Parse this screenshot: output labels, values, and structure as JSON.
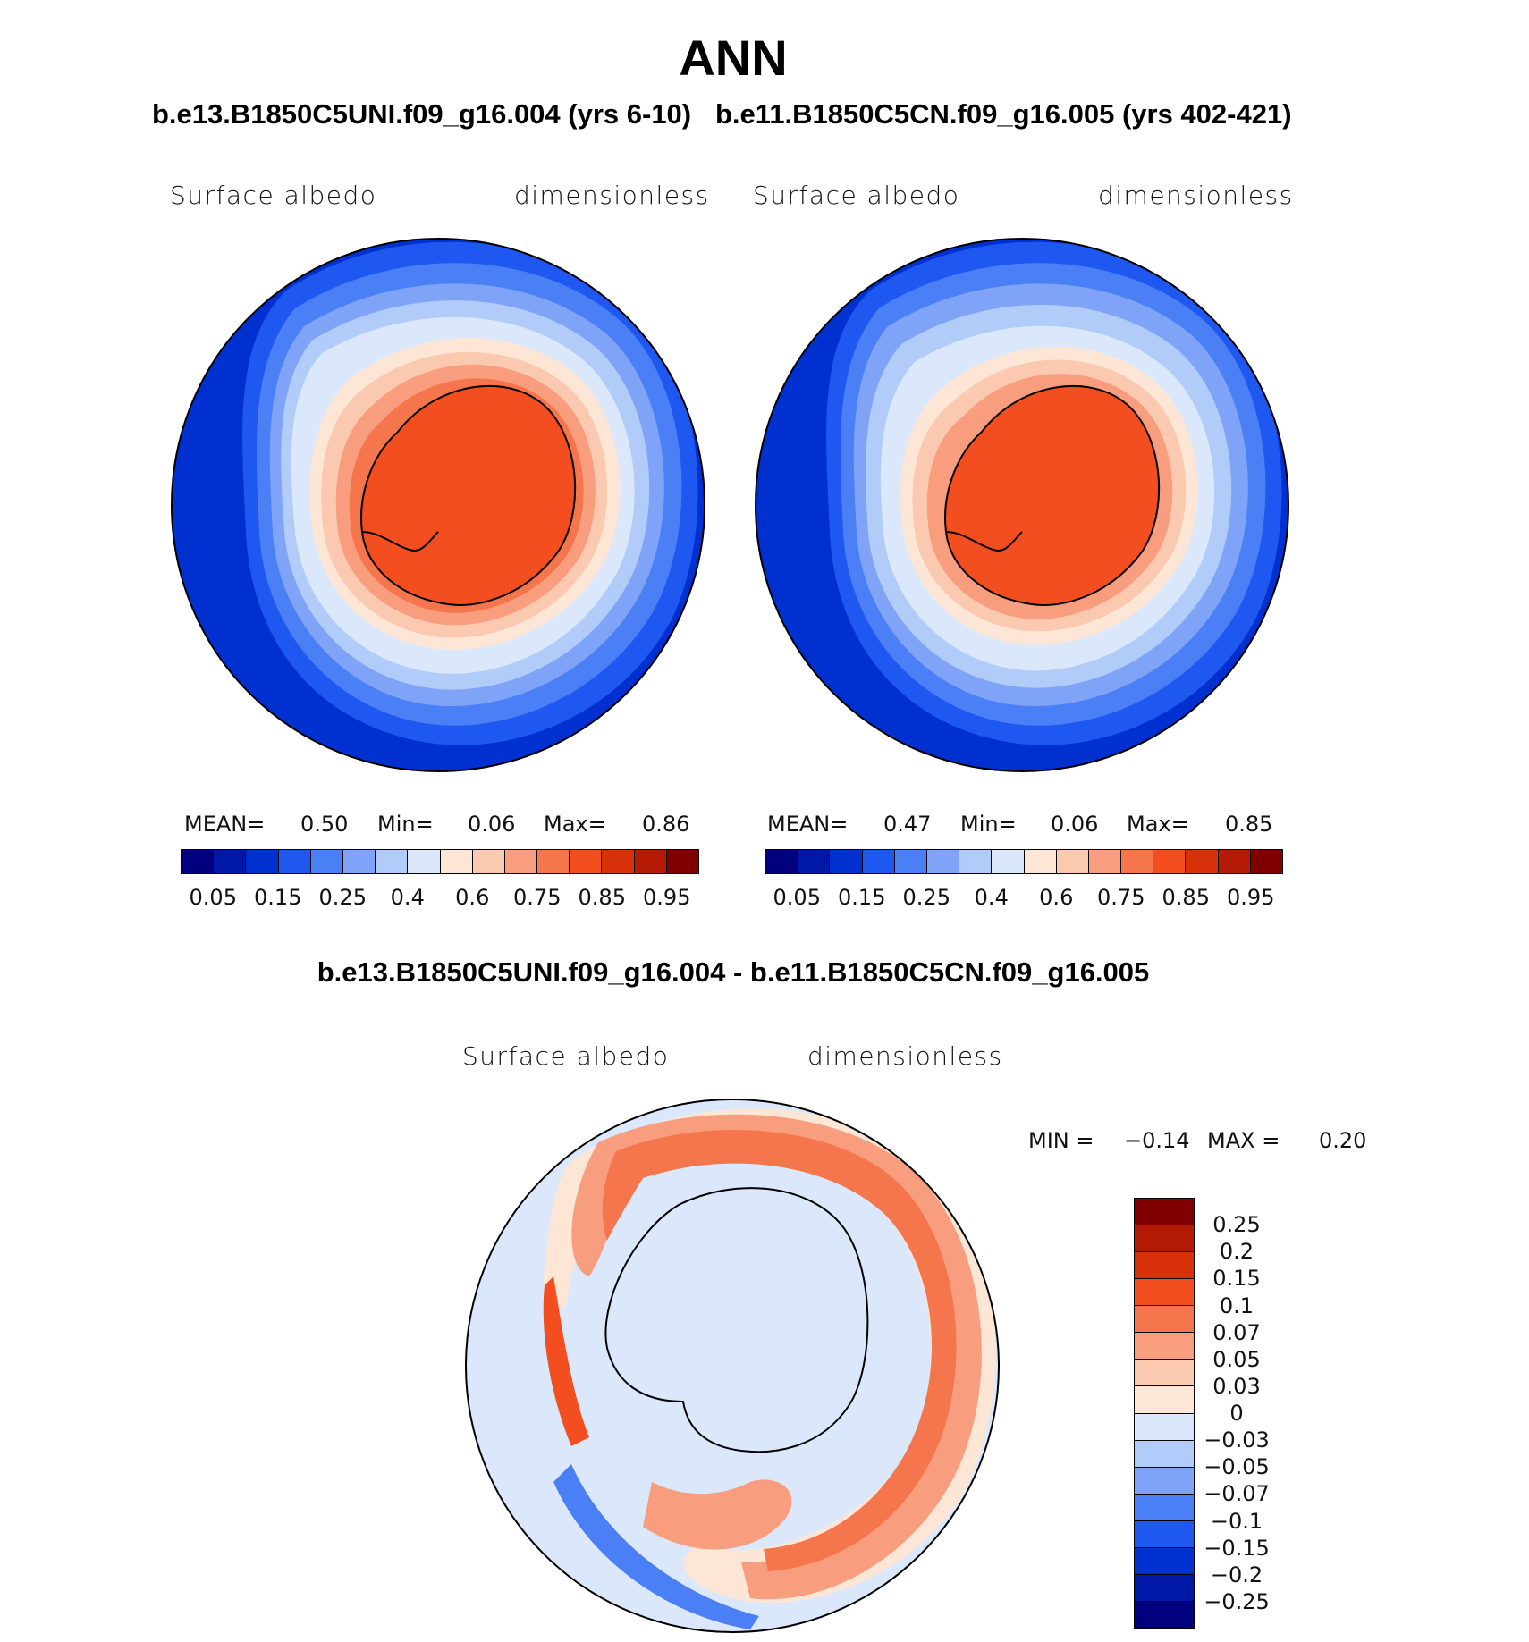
{
  "title": "ANN",
  "panels": [
    {
      "case_title": "b.e13.B1850C5UNI.f09_g16.004 (yrs 6-10)",
      "variable": "Surface albedo",
      "units": "dimensionless",
      "stats": {
        "mean_label": "MEAN=",
        "mean": "0.50",
        "min_label": "Min=",
        "min": "0.06",
        "max_label": "Max=",
        "max": "0.86"
      }
    },
    {
      "case_title": "b.e11.B1850C5CN.f09_g16.005 (yrs 402-421)",
      "variable": "Surface albedo",
      "units": "dimensionless",
      "stats": {
        "mean_label": "MEAN=",
        "mean": "0.47",
        "min_label": "Min=",
        "min": "0.06",
        "max_label": "Max=",
        "max": "0.85"
      }
    }
  ],
  "colorbar": {
    "colors": [
      "#00007f",
      "#0018a8",
      "#0030d0",
      "#1f58f0",
      "#4a7ff5",
      "#7fa3f7",
      "#b2ccfa",
      "#dbe8fb",
      "#fde6d6",
      "#fbc8b0",
      "#f89e7e",
      "#f5754d",
      "#f24e20",
      "#d83008",
      "#b41a06",
      "#800000"
    ],
    "ticks": [
      "0.05",
      "0.15",
      "0.25",
      "0.4",
      "0.6",
      "0.75",
      "0.85",
      "0.95"
    ]
  },
  "diff": {
    "title": "b.e13.B1850C5UNI.f09_g16.004 - b.e11.B1850C5CN.f09_g16.005",
    "variable": "Surface albedo",
    "units": "dimensionless",
    "min_label": "MIN =",
    "min": "−0.14",
    "max_label": "MAX =",
    "max": "0.20",
    "colorbar": {
      "colors": [
        "#00007f",
        "#0018a8",
        "#0030d0",
        "#1f58f0",
        "#4a7ff5",
        "#7fa3f7",
        "#b2ccfa",
        "#dbe8fb",
        "#fde6d6",
        "#fbc8b0",
        "#f89e7e",
        "#f5754d",
        "#f24e20",
        "#d83008",
        "#b41a06",
        "#800000"
      ],
      "ticks": [
        "−0.25",
        "−0.2",
        "−0.15",
        "−0.1",
        "−0.07",
        "−0.05",
        "−0.03",
        "0",
        "0.03",
        "0.05",
        "0.07",
        "0.1",
        "0.15",
        "0.2",
        "0.25"
      ]
    }
  }
}
